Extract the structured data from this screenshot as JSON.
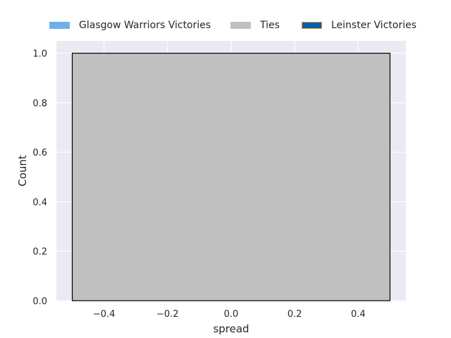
{
  "colors": {
    "background": "#eaeaf2",
    "grid": "#ffffff",
    "text": "#262626"
  },
  "legend": {
    "placement": "top",
    "items": [
      {
        "label": "Glasgow Warriors Victories",
        "color": "#6fb0e8",
        "edge": "#6fb0e8"
      },
      {
        "label": "Ties",
        "color": "#c0c0c0",
        "edge": "#c0c0c0"
      },
      {
        "label": "Leinster Victories",
        "color": "#0a5ea8",
        "edge": "#d4a017"
      }
    ]
  },
  "chart_data": {
    "type": "bar",
    "xlabel": "spread",
    "ylabel": "Count",
    "xlim": [
      -0.55,
      0.55
    ],
    "ylim": [
      0,
      1.05
    ],
    "xticks": [
      -0.4,
      -0.2,
      0.0,
      0.2,
      0.4
    ],
    "xtick_labels": [
      "−0.4",
      "−0.2",
      "0.0",
      "0.2",
      "0.4"
    ],
    "yticks": [
      0.0,
      0.2,
      0.4,
      0.6,
      0.8,
      1.0
    ],
    "ytick_labels": [
      "0.0",
      "0.2",
      "0.4",
      "0.6",
      "0.8",
      "1.0"
    ],
    "grid": true,
    "bars": [
      {
        "x_start": -0.5,
        "x_end": 0.5,
        "value": 1,
        "series": "Ties",
        "color": "#c0c0c0",
        "edge": "#000000"
      }
    ]
  }
}
